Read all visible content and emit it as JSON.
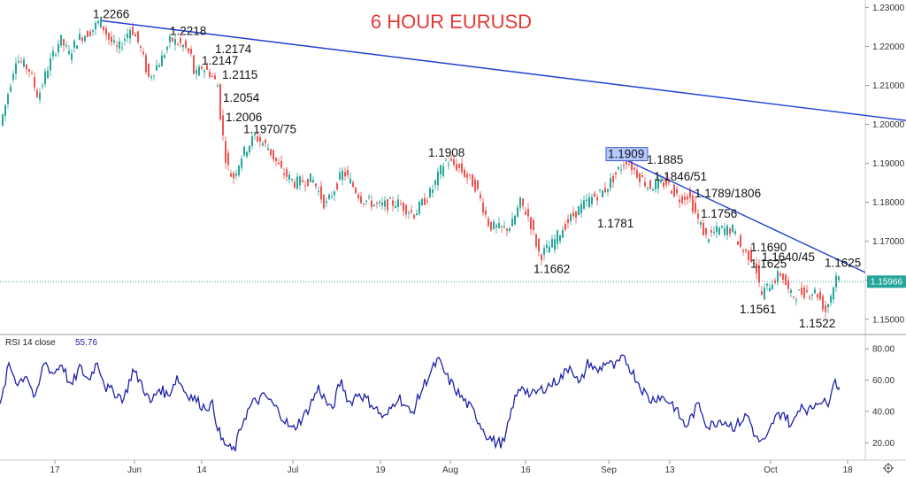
{
  "title": "6 HOUR EURUSD",
  "colors": {
    "up": "#26a69a",
    "down": "#ef5350",
    "trendline": "#1f3fd1",
    "rsi": "#1e22a8",
    "price_line": "#26a69a"
  },
  "icons": {
    "settings": "gear-icon"
  },
  "chart_data": [
    {
      "type": "candlestick",
      "title": "6 HOUR EURUSD",
      "price_axis": [
        "1.23000",
        "1.22000",
        "1.21000",
        "1.20000",
        "1.19000",
        "1.18000",
        "1.17000",
        "1.16000",
        "1.15000"
      ],
      "ylim": [
        1.147,
        1.231
      ],
      "current_price": "1.15966",
      "x_axis_labels": [
        "17",
        "Jun",
        "14",
        "Jul",
        "19",
        "Aug",
        "16",
        "Sep",
        "13",
        "Oct",
        "18"
      ],
      "path_anchors": [
        [
          0,
          1.198
        ],
        [
          8,
          1.205
        ],
        [
          20,
          1.217
        ],
        [
          35,
          1.214
        ],
        [
          45,
          1.207
        ],
        [
          55,
          1.214
        ],
        [
          70,
          1.222
        ],
        [
          80,
          1.218
        ],
        [
          90,
          1.222
        ],
        [
          105,
          1.224
        ],
        [
          115,
          1.2266
        ],
        [
          125,
          1.222
        ],
        [
          135,
          1.219
        ],
        [
          150,
          1.225
        ],
        [
          160,
          1.22
        ],
        [
          170,
          1.212
        ],
        [
          185,
          1.217
        ],
        [
          195,
          1.2218
        ],
        [
          210,
          1.22
        ],
        [
          218,
          1.2174
        ],
        [
          222,
          1.212
        ],
        [
          230,
          1.2147
        ],
        [
          240,
          1.213
        ],
        [
          248,
          1.21
        ],
        [
          252,
          1.2
        ],
        [
          258,
          1.19
        ],
        [
          265,
          1.186
        ],
        [
          275,
          1.192
        ],
        [
          290,
          1.197
        ],
        [
          305,
          1.194
        ],
        [
          320,
          1.188
        ],
        [
          335,
          1.185
        ],
        [
          355,
          1.186
        ],
        [
          370,
          1.179
        ],
        [
          390,
          1.188
        ],
        [
          410,
          1.181
        ],
        [
          430,
          1.179
        ],
        [
          450,
          1.18
        ],
        [
          470,
          1.177
        ],
        [
          490,
          1.183
        ],
        [
          505,
          1.1908
        ],
        [
          520,
          1.189
        ],
        [
          540,
          1.184
        ],
        [
          555,
          1.174
        ],
        [
          570,
          1.173
        ],
        [
          580,
          1.174
        ],
        [
          590,
          1.18
        ],
        [
          600,
          1.176
        ],
        [
          612,
          1.1662
        ],
        [
          625,
          1.169
        ],
        [
          640,
          1.174
        ],
        [
          655,
          1.178
        ],
        [
          670,
          1.181
        ],
        [
          685,
          1.183
        ],
        [
          700,
          1.188
        ],
        [
          710,
          1.1909
        ],
        [
          720,
          1.188
        ],
        [
          735,
          1.184
        ],
        [
          755,
          1.185
        ],
        [
          770,
          1.181
        ],
        [
          780,
          1.182
        ],
        [
          790,
          1.176
        ],
        [
          800,
          1.171
        ],
        [
          815,
          1.173
        ],
        [
          830,
          1.173
        ],
        [
          840,
          1.168
        ],
        [
          855,
          1.165
        ],
        [
          862,
          1.1561
        ],
        [
          872,
          1.159
        ],
        [
          885,
          1.162
        ],
        [
          895,
          1.156
        ],
        [
          910,
          1.157
        ],
        [
          925,
          1.157
        ],
        [
          935,
          1.1522
        ],
        [
          942,
          1.157
        ],
        [
          948,
          1.162
        ]
      ],
      "annotations": [
        {
          "text": "1.2266",
          "price": 1.2266
        },
        {
          "text": "1.2218",
          "price": 1.2218
        },
        {
          "text": "1.2174",
          "price": 1.2174
        },
        {
          "text": "1.2147",
          "price": 1.2147
        },
        {
          "text": "1.2115",
          "price": 1.2115
        },
        {
          "text": "1.2054",
          "price": 1.2054
        },
        {
          "text": "1.2006",
          "price": 1.2006
        },
        {
          "text": "1.1970/75",
          "price": 1.1975
        },
        {
          "text": "1.1908",
          "price": 1.1908
        },
        {
          "text": "1.1909",
          "price": 1.1909
        },
        {
          "text": "1.1885",
          "price": 1.1885
        },
        {
          "text": "1.1846/51",
          "price": 1.1851
        },
        {
          "text": "1.1781",
          "price": 1.1781
        },
        {
          "text": "1.1789/1806",
          "price": 1.1806
        },
        {
          "text": "1.1662",
          "price": 1.1662
        },
        {
          "text": "1.1756",
          "price": 1.1756
        },
        {
          "text": "1.1625",
          "price": 1.1625
        },
        {
          "text": "1.1690",
          "price": 1.169
        },
        {
          "text": "1.1640/45",
          "price": 1.1645
        },
        {
          "text": "1.1625",
          "price": 1.1625
        },
        {
          "text": "1.1561",
          "price": 1.1561
        },
        {
          "text": "1.1522",
          "price": 1.1522
        }
      ],
      "trendlines": [
        {
          "from_price": 1.2266,
          "to_price": 1.201
        },
        {
          "from_price": 1.1906,
          "to_price": 1.162
        }
      ]
    },
    {
      "type": "line",
      "name": "RSI 14 close",
      "legend_label": "RSI 14 close",
      "last_value": "55.76",
      "y_axis": [
        "80.00",
        "60.00",
        "40.00",
        "20.00"
      ],
      "ylim": [
        10,
        88
      ],
      "path_anchors": [
        [
          0,
          42
        ],
        [
          10,
          70
        ],
        [
          20,
          58
        ],
        [
          30,
          64
        ],
        [
          40,
          47
        ],
        [
          50,
          72
        ],
        [
          60,
          64
        ],
        [
          70,
          71
        ],
        [
          80,
          55
        ],
        [
          90,
          68
        ],
        [
          100,
          60
        ],
        [
          110,
          72
        ],
        [
          120,
          55
        ],
        [
          130,
          52
        ],
        [
          140,
          48
        ],
        [
          150,
          66
        ],
        [
          160,
          58
        ],
        [
          170,
          45
        ],
        [
          180,
          55
        ],
        [
          190,
          50
        ],
        [
          200,
          62
        ],
        [
          210,
          52
        ],
        [
          220,
          48
        ],
        [
          230,
          43
        ],
        [
          240,
          44
        ],
        [
          250,
          22
        ],
        [
          260,
          16
        ],
        [
          265,
          15
        ],
        [
          275,
          35
        ],
        [
          285,
          45
        ],
        [
          300,
          50
        ],
        [
          315,
          40
        ],
        [
          330,
          28
        ],
        [
          345,
          38
        ],
        [
          360,
          55
        ],
        [
          375,
          40
        ],
        [
          385,
          60
        ],
        [
          395,
          45
        ],
        [
          405,
          52
        ],
        [
          420,
          45
        ],
        [
          435,
          35
        ],
        [
          450,
          50
        ],
        [
          465,
          38
        ],
        [
          480,
          58
        ],
        [
          495,
          73
        ],
        [
          505,
          62
        ],
        [
          520,
          50
        ],
        [
          535,
          40
        ],
        [
          550,
          25
        ],
        [
          560,
          20
        ],
        [
          570,
          20
        ],
        [
          580,
          45
        ],
        [
          590,
          57
        ],
        [
          600,
          50
        ],
        [
          615,
          55
        ],
        [
          625,
          58
        ],
        [
          635,
          62
        ],
        [
          645,
          70
        ],
        [
          655,
          56
        ],
        [
          665,
          72
        ],
        [
          675,
          65
        ],
        [
          685,
          72
        ],
        [
          695,
          68
        ],
        [
          705,
          75
        ],
        [
          715,
          65
        ],
        [
          725,
          55
        ],
        [
          735,
          47
        ],
        [
          745,
          50
        ],
        [
          760,
          45
        ],
        [
          775,
          30
        ],
        [
          790,
          45
        ],
        [
          800,
          30
        ],
        [
          815,
          35
        ],
        [
          830,
          30
        ],
        [
          845,
          38
        ],
        [
          855,
          22
        ],
        [
          865,
          20
        ],
        [
          875,
          35
        ],
        [
          885,
          40
        ],
        [
          895,
          30
        ],
        [
          905,
          45
        ],
        [
          915,
          40
        ],
        [
          925,
          48
        ],
        [
          935,
          44
        ],
        [
          942,
          60
        ],
        [
          948,
          56
        ]
      ]
    }
  ]
}
